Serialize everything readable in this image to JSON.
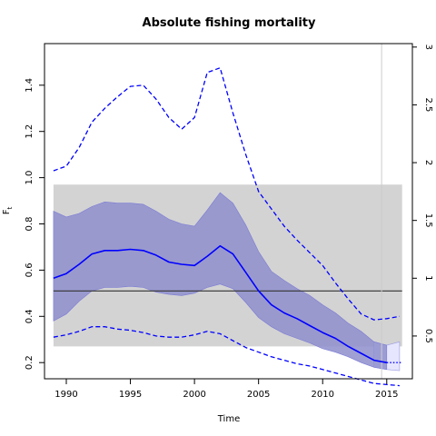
{
  "chart_data": {
    "type": "line",
    "title": "Absolute fishing mortality",
    "xlabel": "Time",
    "ylabel": "F",
    "ylabel_subscript": "t",
    "xlim": [
      1988.3,
      2017.0
    ],
    "ylim": [
      0.13,
      1.58
    ],
    "y2lim": [
      0.13,
      3.03
    ],
    "x_ticks": [
      1990,
      1995,
      2000,
      2005,
      2010,
      2015
    ],
    "y_ticks": [
      0.2,
      0.4,
      0.6,
      0.8,
      1.0,
      1.2,
      1.4
    ],
    "y2_ticks": [
      0.5,
      1,
      1.5,
      2,
      2.5,
      3
    ],
    "colors": {
      "estimate": "#0000ff",
      "ci_band": "#8e8ecc",
      "forecast_band": "#e6e6ff",
      "reference_band": "#d3d3d3",
      "reference_line": "#333333",
      "vline": "#cccccc"
    },
    "reference_band": {
      "x": [
        1989.0,
        2016.2
      ],
      "y": [
        0.27,
        0.97
      ]
    },
    "reference_line_y": 0.51,
    "forecast_start_x": 2014.6,
    "series": [
      {
        "type": "line",
        "x": [
          1989.0,
          1990.0,
          1991.0,
          1992.0,
          1993.0,
          1994.0,
          1995.0,
          1996.0,
          1997.0,
          1998.0,
          1999.0,
          2000.0,
          2001.0,
          2002.0,
          2003.0,
          2004.0,
          2005.0,
          2006.0,
          2007.0,
          2008.0,
          2009.0,
          2010.0,
          2011.0,
          2012.0,
          2013.0,
          2014.0,
          2015.0
        ],
        "values": [
          0.565,
          0.585,
          0.625,
          0.67,
          0.685,
          0.685,
          0.69,
          0.685,
          0.665,
          0.635,
          0.625,
          0.62,
          0.66,
          0.705,
          0.67,
          0.59,
          0.51,
          0.45,
          0.415,
          0.39,
          0.36,
          0.33,
          0.305,
          0.27,
          0.24,
          0.21,
          0.2
        ]
      },
      {
        "type": "band",
        "x": [
          1989.0,
          1990.0,
          1991.0,
          1992.0,
          1993.0,
          1994.0,
          1995.0,
          1996.0,
          1997.0,
          1998.0,
          1999.0,
          2000.0,
          2001.0,
          2002.0,
          2003.0,
          2004.0,
          2005.0,
          2006.0,
          2007.0,
          2008.0,
          2009.0,
          2010.0,
          2011.0,
          2012.0,
          2013.0,
          2014.0,
          2015.0,
          2016.0
        ],
        "lower": [
          0.38,
          0.41,
          0.465,
          0.51,
          0.525,
          0.525,
          0.53,
          0.525,
          0.505,
          0.495,
          0.49,
          0.5,
          0.525,
          0.54,
          0.52,
          0.46,
          0.395,
          0.355,
          0.325,
          0.305,
          0.285,
          0.26,
          0.245,
          0.225,
          0.2,
          0.18,
          0.17,
          0.165
        ],
        "upper": [
          0.855,
          0.83,
          0.845,
          0.875,
          0.895,
          0.89,
          0.89,
          0.885,
          0.855,
          0.82,
          0.8,
          0.79,
          0.86,
          0.935,
          0.89,
          0.795,
          0.68,
          0.595,
          0.555,
          0.52,
          0.49,
          0.45,
          0.415,
          0.37,
          0.335,
          0.29,
          0.275,
          0.29
        ]
      },
      {
        "type": "dashed_upper",
        "x": [
          1989.0,
          1990.0,
          1991.0,
          1992.0,
          1993.0,
          1994.0,
          1995.0,
          1996.0,
          1997.0,
          1998.0,
          1999.0,
          2000.0,
          2001.0,
          2002.0,
          2003.0,
          2004.0,
          2005.0,
          2006.0,
          2007.0,
          2008.0,
          2009.0,
          2010.0,
          2011.0,
          2012.0,
          2013.0,
          2014.0,
          2015.0,
          2016.0
        ],
        "values": [
          1.03,
          1.05,
          1.13,
          1.24,
          1.3,
          1.35,
          1.395,
          1.4,
          1.34,
          1.26,
          1.21,
          1.26,
          1.455,
          1.475,
          1.28,
          1.1,
          0.94,
          0.865,
          0.79,
          0.73,
          0.675,
          0.62,
          0.545,
          0.475,
          0.41,
          0.385,
          0.39,
          0.4
        ]
      },
      {
        "type": "dashed_lower",
        "x": [
          1989.0,
          1990.0,
          1991.0,
          1992.0,
          1993.0,
          1994.0,
          1995.0,
          1996.0,
          1997.0,
          1998.0,
          1999.0,
          2000.0,
          2001.0,
          2002.0,
          2003.0,
          2004.0,
          2005.0,
          2006.0,
          2007.0,
          2008.0,
          2009.0,
          2010.0,
          2011.0,
          2012.0,
          2013.0,
          2014.0,
          2015.0,
          2016.0
        ],
        "values": [
          0.31,
          0.32,
          0.335,
          0.355,
          0.355,
          0.345,
          0.34,
          0.33,
          0.315,
          0.31,
          0.31,
          0.32,
          0.335,
          0.325,
          0.295,
          0.265,
          0.245,
          0.225,
          0.21,
          0.195,
          0.185,
          0.17,
          0.155,
          0.14,
          0.125,
          0.11,
          0.105,
          0.1
        ]
      },
      {
        "type": "dotted_forecast",
        "x": [
          2015.0,
          2016.2
        ],
        "values": [
          0.2,
          0.2
        ]
      }
    ]
  }
}
